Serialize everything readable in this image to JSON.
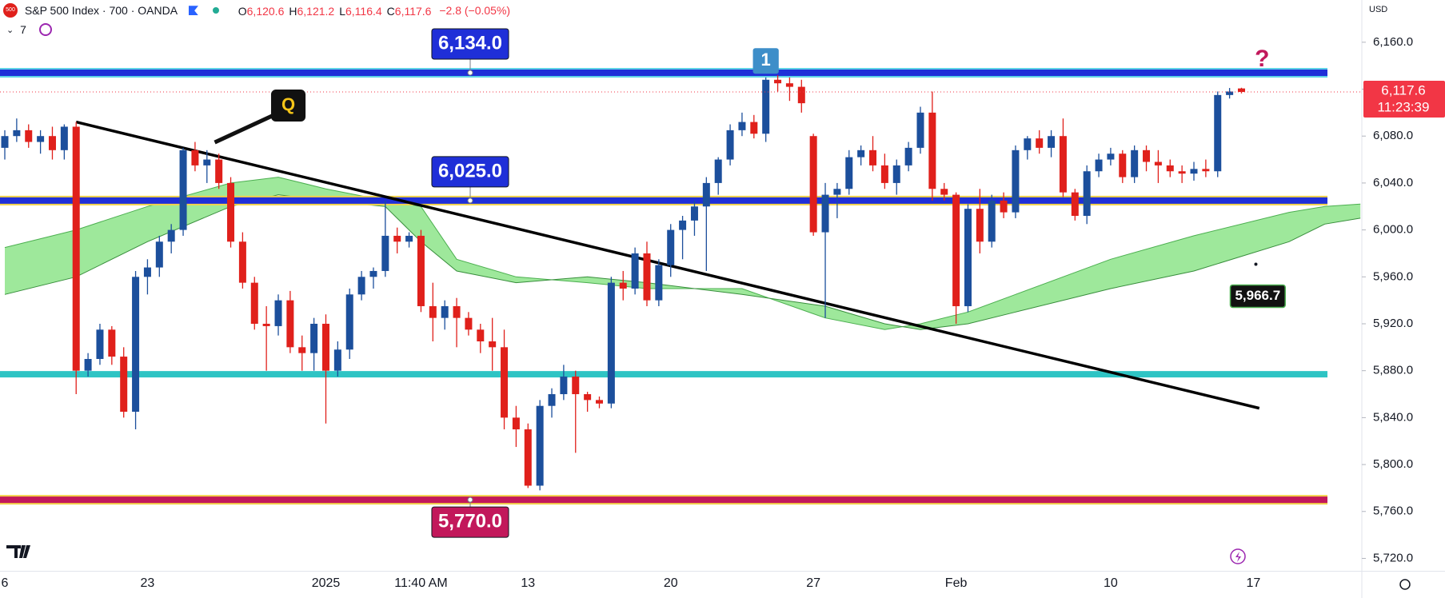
{
  "header": {
    "symbol": "S&P 500 Index · 700 · OANDA",
    "ohlc": [
      {
        "key": "O",
        "value": "6,120.6"
      },
      {
        "key": "H",
        "value": "6,121.2"
      },
      {
        "key": "L",
        "value": "6,116.4"
      },
      {
        "key": "C",
        "value": "6,117.6"
      }
    ],
    "change": "−2.8 (−0.05%)",
    "indicators": "7",
    "currency": "USD"
  },
  "chart_data": {
    "type": "candlestick",
    "categories": [
      "6",
      null,
      null,
      null,
      null,
      null,
      null,
      null,
      null,
      null,
      null,
      null,
      "23",
      null,
      null,
      null,
      null,
      null,
      null,
      null,
      null,
      null,
      null,
      null,
      null,
      null,
      null,
      "2025",
      null,
      null,
      null,
      null,
      null,
      null,
      null,
      "11:40 AM",
      null,
      null,
      null,
      null,
      null,
      null,
      null,
      null,
      "13",
      null,
      null,
      null,
      null,
      null,
      null,
      null,
      null,
      null,
      null,
      null,
      "20",
      null,
      null,
      null,
      null,
      null,
      null,
      null,
      null,
      null,
      null,
      null,
      "27",
      null,
      null,
      null,
      null,
      null,
      null,
      null,
      null,
      null,
      null,
      null,
      "Feb",
      null,
      null,
      null,
      null,
      null,
      null,
      null,
      null,
      null,
      null,
      null,
      null,
      "10",
      null,
      null,
      null,
      null,
      null,
      null,
      null,
      null,
      null,
      null,
      null,
      "17",
      null,
      null,
      null,
      null,
      null,
      null,
      null,
      null
    ],
    "ohlc": [
      [
        6070,
        6085,
        6060,
        6080
      ],
      [
        6080,
        6095,
        6075,
        6085
      ],
      [
        6085,
        6090,
        6070,
        6075
      ],
      [
        6075,
        6085,
        6065,
        6080
      ],
      [
        6080,
        6088,
        6060,
        6068
      ],
      [
        6068,
        6090,
        6060,
        6088
      ],
      [
        6088,
        6092,
        5860,
        5880
      ],
      [
        5880,
        5895,
        5875,
        5890
      ],
      [
        5890,
        5920,
        5885,
        5915
      ],
      [
        5915,
        5918,
        5885,
        5892
      ],
      [
        5892,
        5900,
        5840,
        5845
      ],
      [
        5845,
        5965,
        5830,
        5960
      ],
      [
        5960,
        5975,
        5945,
        5968
      ],
      [
        5968,
        5995,
        5960,
        5990
      ],
      [
        5990,
        6005,
        5980,
        6000
      ],
      [
        6000,
        6070,
        5995,
        6068
      ],
      [
        6068,
        6075,
        6050,
        6055
      ],
      [
        6055,
        6068,
        6040,
        6060
      ],
      [
        6060,
        6065,
        6035,
        6040
      ],
      [
        6040,
        6045,
        5985,
        5990
      ],
      [
        5990,
        5998,
        5950,
        5955
      ],
      [
        5955,
        5960,
        5915,
        5920
      ],
      [
        5920,
        5935,
        5880,
        5918
      ],
      [
        5918,
        5945,
        5910,
        5940
      ],
      [
        5940,
        5948,
        5895,
        5900
      ],
      [
        5900,
        5910,
        5880,
        5895
      ],
      [
        5895,
        5925,
        5880,
        5920
      ],
      [
        5920,
        5928,
        5835,
        5880
      ],
      [
        5880,
        5905,
        5875,
        5898
      ],
      [
        5898,
        5950,
        5890,
        5945
      ],
      [
        5945,
        5965,
        5940,
        5960
      ],
      [
        5960,
        5968,
        5950,
        5965
      ],
      [
        5965,
        6025,
        5960,
        5995
      ],
      [
        5995,
        6002,
        5980,
        5990
      ],
      [
        5990,
        5998,
        5985,
        5995
      ],
      [
        5995,
        6000,
        5930,
        5935
      ],
      [
        5935,
        5955,
        5905,
        5925
      ],
      [
        5925,
        5940,
        5915,
        5935
      ],
      [
        5935,
        5942,
        5900,
        5925
      ],
      [
        5925,
        5930,
        5910,
        5915
      ],
      [
        5915,
        5920,
        5895,
        5905
      ],
      [
        5905,
        5925,
        5880,
        5900
      ],
      [
        5900,
        5915,
        5830,
        5840
      ],
      [
        5840,
        5850,
        5815,
        5830
      ],
      [
        5830,
        5835,
        5780,
        5782
      ],
      [
        5782,
        5855,
        5778,
        5850
      ],
      [
        5850,
        5865,
        5840,
        5860
      ],
      [
        5860,
        5885,
        5855,
        5875
      ],
      [
        5875,
        5880,
        5810,
        5860
      ],
      [
        5860,
        5862,
        5845,
        5855
      ],
      [
        5855,
        5858,
        5848,
        5852
      ],
      [
        5852,
        5960,
        5848,
        5955
      ],
      [
        5955,
        5965,
        5940,
        5950
      ],
      [
        5950,
        5985,
        5945,
        5980
      ],
      [
        5980,
        5990,
        5935,
        5940
      ],
      [
        5940,
        5975,
        5935,
        5970
      ],
      [
        5970,
        6005,
        5960,
        6000
      ],
      [
        6000,
        6012,
        5975,
        6008
      ],
      [
        6008,
        6025,
        5995,
        6020
      ],
      [
        6020,
        6045,
        5965,
        6040
      ],
      [
        6040,
        6062,
        6030,
        6060
      ],
      [
        6060,
        6090,
        6055,
        6085
      ],
      [
        6085,
        6100,
        6080,
        6092
      ],
      [
        6092,
        6098,
        6078,
        6082
      ],
      [
        6082,
        6130,
        6075,
        6128
      ],
      [
        6128,
        6132,
        6118,
        6125
      ],
      [
        6125,
        6130,
        6110,
        6122
      ],
      [
        6122,
        6128,
        6100,
        6108
      ],
      [
        6080,
        6082,
        5995,
        5998
      ],
      [
        5998,
        6040,
        5925,
        6030
      ],
      [
        6030,
        6040,
        6010,
        6035
      ],
      [
        6035,
        6068,
        6030,
        6062
      ],
      [
        6062,
        6072,
        6055,
        6068
      ],
      [
        6068,
        6080,
        6050,
        6055
      ],
      [
        6055,
        6065,
        6035,
        6040
      ],
      [
        6040,
        6060,
        6030,
        6055
      ],
      [
        6055,
        6075,
        6050,
        6070
      ],
      [
        6070,
        6105,
        6065,
        6100
      ],
      [
        6100,
        6118,
        6025,
        6035
      ],
      [
        6035,
        6040,
        6025,
        6030
      ],
      [
        6030,
        6032,
        5920,
        5935
      ],
      [
        5935,
        6022,
        5930,
        6018
      ],
      [
        6018,
        6035,
        5980,
        5990
      ],
      [
        5990,
        6030,
        5985,
        6025
      ],
      [
        6025,
        6032,
        6010,
        6015
      ],
      [
        6015,
        6072,
        6010,
        6068
      ],
      [
        6068,
        6080,
        6060,
        6078
      ],
      [
        6078,
        6085,
        6065,
        6070
      ],
      [
        6070,
        6085,
        6062,
        6080
      ],
      [
        6080,
        6095,
        6028,
        6032
      ],
      [
        6032,
        6035,
        6008,
        6012
      ],
      [
        6012,
        6055,
        6005,
        6050
      ],
      [
        6050,
        6065,
        6045,
        6060
      ],
      [
        6060,
        6070,
        6055,
        6065
      ],
      [
        6065,
        6068,
        6040,
        6045
      ],
      [
        6045,
        6072,
        6040,
        6068
      ],
      [
        6068,
        6072,
        6050,
        6058
      ],
      [
        6058,
        6068,
        6040,
        6055
      ],
      [
        6055,
        6060,
        6045,
        6050
      ],
      [
        6050,
        6055,
        6040,
        6048
      ],
      [
        6048,
        6058,
        6042,
        6052
      ],
      [
        6052,
        6060,
        6045,
        6050
      ],
      [
        6050,
        6118,
        6045,
        6115
      ],
      [
        6115,
        6121,
        6112,
        6118
      ],
      [
        6120.6,
        6121.2,
        6116.4,
        6117.6
      ],
      null,
      null,
      null,
      null,
      null,
      null,
      null,
      null,
      null
    ],
    "up_color": "#1c4f9c",
    "down_color": "#e0201b",
    "ylim": [
      5709,
      6196
    ],
    "yticks": [
      {
        "value": 6160,
        "label": "6,160.0"
      },
      {
        "value": 6120,
        "label": "6,120.0"
      },
      {
        "value": 6080,
        "label": "6,080.0"
      },
      {
        "value": 6040,
        "label": "6,040.0"
      },
      {
        "value": 6000,
        "label": "6,000.0"
      },
      {
        "value": 5960,
        "label": "5,960.0"
      },
      {
        "value": 5920,
        "label": "5,920.0"
      },
      {
        "value": 5880,
        "label": "5,880.0"
      },
      {
        "value": 5840,
        "label": "5,840.0"
      },
      {
        "value": 5800,
        "label": "5,800.0"
      },
      {
        "value": 5760,
        "label": "5,760.0"
      },
      {
        "value": 5720,
        "label": "5,720.0"
      }
    ],
    "cloud": {
      "x": [
        0,
        6,
        12,
        19,
        23,
        27,
        32,
        35,
        38,
        43,
        49,
        54,
        62,
        69,
        74,
        77,
        81,
        85,
        93,
        100,
        108,
        111,
        114
      ],
      "span_a": [
        5985,
        6000,
        6020,
        6040,
        6045,
        6035,
        6025,
        6020,
        5975,
        5960,
        5955,
        5950,
        5950,
        5925,
        5915,
        5920,
        5930,
        5945,
        5975,
        5995,
        6015,
        6020,
        6022
      ],
      "span_b": [
        5945,
        5960,
        5990,
        6020,
        6030,
        6025,
        6020,
        5990,
        5965,
        5955,
        5960,
        5955,
        5945,
        5935,
        5920,
        5915,
        5920,
        5930,
        5950,
        5965,
        5990,
        6005,
        6010
      ],
      "color": "#7ee07a"
    },
    "levels": [
      {
        "value": 6134,
        "label": "6,134.0",
        "color": "#1f2fd8",
        "outline": "#5fd3e6"
      },
      {
        "value": 6025,
        "label": "6,025.0",
        "color": "#1f2fd8",
        "outline": "#f2d34a"
      },
      {
        "value": 5877,
        "color": "#2ec4c4"
      },
      {
        "value": 5770,
        "label": "5,770.0",
        "color": "#c2185b",
        "outline": "#f2d34a"
      }
    ],
    "trendline": {
      "x": [
        6,
        105.5
      ],
      "y": [
        6092,
        5848
      ],
      "color": "#000000"
    },
    "last_price": {
      "value": 6117.6,
      "label": "6,117.6",
      "countdown": "11:23:39",
      "color": "#f23645"
    },
    "marker": {
      "x": 104,
      "value": 5966.7,
      "label": "5,966.7"
    },
    "annotations": [
      {
        "text": "Q",
        "x": 19,
        "y": 6106
      },
      {
        "text": "1",
        "x": 64,
        "y": 6144
      },
      {
        "text": "?",
        "x": 105,
        "y": 6145
      }
    ]
  }
}
